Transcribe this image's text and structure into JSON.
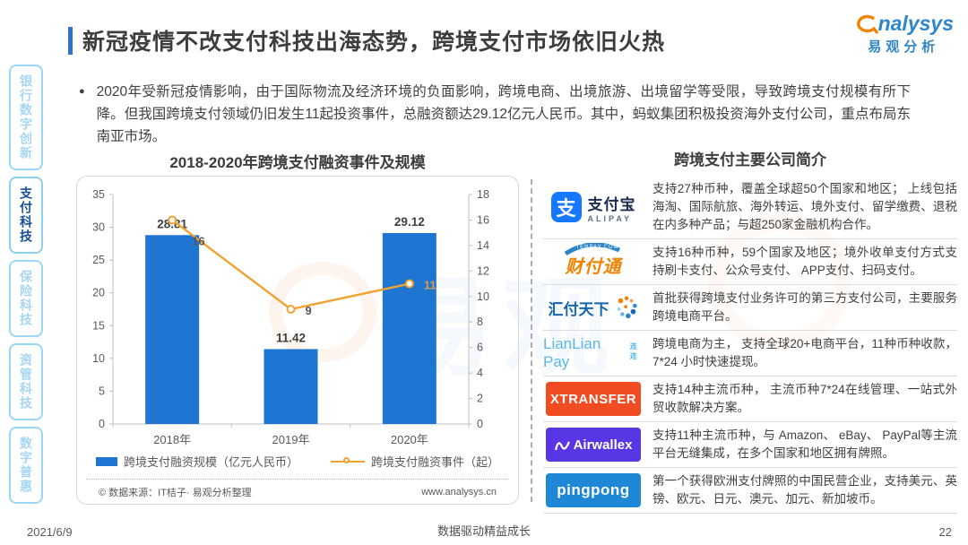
{
  "header": {
    "title": "新冠疫情不改支付科技出海态势，跨境支付市场依旧火热"
  },
  "brand": {
    "name_en": "analysys",
    "name_en_tail": "nalysys",
    "name_cn": "易观分析"
  },
  "sidebar": {
    "items": [
      {
        "label": "银行数字创新",
        "active": false
      },
      {
        "label": "支付科技",
        "active": true
      },
      {
        "label": "保险科技",
        "active": false
      },
      {
        "label": "资管科技",
        "active": false
      },
      {
        "label": "数字普惠",
        "active": false
      }
    ]
  },
  "intro": {
    "bullet": "●",
    "text": "2020年受新冠疫情影响，由于国际物流及经济环境的负面影响，跨境电商、出境旅游、出境留学等受限，导致跨境支付规模有所下降。但我国跨境支付领域仍旧发生11起投资事件，总融资额达29.12亿元人民币。其中，蚂蚁集团积极投资海外支付公司，重点布局东南亚市场。"
  },
  "chart": {
    "title": "2018-2020年跨境支付融资事件及规模",
    "source_left": "© 数据来源：IT桔子· 易观分析整理",
    "source_right": "www.analysys.cn"
  },
  "chart_data": {
    "type": "bar",
    "subtype": "bar+line-dual-axis",
    "title": "2018-2020年跨境支付融资事件及规模",
    "categories": [
      "2018年",
      "2019年",
      "2020年"
    ],
    "series": [
      {
        "name": "跨境支付融资规模（亿元人民币）",
        "type": "bar",
        "axis": "left",
        "values": [
          28.81,
          11.42,
          29.12
        ],
        "color": "#1E76D2"
      },
      {
        "name": "跨境支付融资事件（起）",
        "type": "line",
        "axis": "right",
        "values": [
          16,
          9,
          11
        ],
        "color": "#F0A230"
      }
    ],
    "left_axis": {
      "min": 0,
      "max": 35,
      "step": 5
    },
    "right_axis": {
      "min": 0,
      "max": 18,
      "step": 2
    },
    "grid": false,
    "legend_position": "bottom"
  },
  "companies": {
    "title": "跨境支付主要公司简介",
    "rows": [
      {
        "name": "支付宝",
        "type": "alipay",
        "icon_char": "支",
        "logo_text": "支付宝",
        "logo_sub": "ALIPAY",
        "desc": "支持27种币种，覆盖全球超50个国家和地区； 上线包括海淘、国际航旅、海外转运、境外支付、留学缴费、退税在内多种产品；与超250家金融机构合作。"
      },
      {
        "name": "财付通",
        "type": "tenpay",
        "logo_text": "财付通",
        "logo_sub": "TENPAY.COM",
        "desc": "支持16种币种，59个国家及地区；境外收单支付方式支持刷卡支付、公众号支付、 APP支付、扫码支付。"
      },
      {
        "name": "汇付天下",
        "type": "huifu",
        "logo_text": "汇付天下",
        "desc": "首批获得跨境支付业务许可的第三方支付公司，主要服务跨境电商平台。"
      },
      {
        "name": "连连支付",
        "type": "lianlian",
        "logo_text": "LianLian Pay",
        "logo_sub": "连连",
        "desc": "跨境电商为主， 支持全球20+电商平台，11种币种收款，7*24 小时快速提现。"
      },
      {
        "name": "XTRANSFER",
        "type": "xtransfer",
        "logo_text": "XTRANSFER",
        "desc": "支持14种主流币种， 主流币种7*24在线管理、一站式外贸收款解决方案。"
      },
      {
        "name": "Airwallex",
        "type": "airwallex",
        "logo_text": "Airwallex",
        "desc": "支持11种主流币种，与 Amazon、 eBay、 PayPal等主流平台无缝集成，在多个国家和地区拥有牌照。"
      },
      {
        "name": "PingPong",
        "type": "pingpong",
        "logo_text": "pingpong",
        "desc": "第一个获得欧洲支付牌照的中国民营企业，支持美元、英镑、欧元、日元、澳元、加元、新加坡币。"
      }
    ]
  },
  "watermark": {
    "cn": "易观"
  },
  "footer": {
    "date": "2021/6/9",
    "center": "数据驱动精益成长",
    "page": "22"
  }
}
